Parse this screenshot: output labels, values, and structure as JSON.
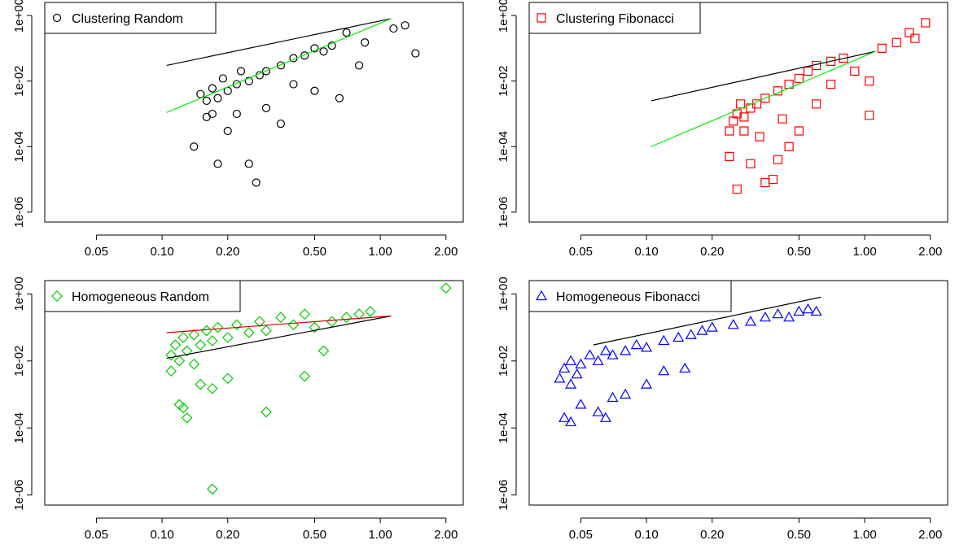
{
  "colors": {
    "black": "#000000",
    "red": "#ff0000",
    "green": "#00cc00",
    "blue": "#0000ff",
    "fit_green": "#00ee00",
    "fit_red": "#cc0000"
  },
  "chart_data": [
    {
      "type": "scatter",
      "x_scale": "log",
      "y_scale": "log",
      "xlim": [
        0.029,
        2.4
      ],
      "ylim": [
        5e-07,
        2.5
      ],
      "x_ticks": [
        "0.05",
        "0.10",
        "0.20",
        "0.50",
        "1.00",
        "2.00"
      ],
      "y_ticks": [
        "1e-06",
        "1e-04",
        "1e-02",
        "1e+00"
      ],
      "legend": {
        "position": "top-left",
        "label": "Clustering Random",
        "marker": "circle",
        "color": "#000000"
      },
      "series": [
        {
          "name": "Clustering Random",
          "marker": "circle",
          "color": "#000000",
          "points": [
            [
              0.15,
              0.004
            ],
            [
              0.16,
              0.0025
            ],
            [
              0.17,
              0.006
            ],
            [
              0.18,
              0.003
            ],
            [
              0.2,
              0.005
            ],
            [
              0.22,
              0.008
            ],
            [
              0.25,
              0.01
            ],
            [
              0.28,
              0.015
            ],
            [
              0.3,
              0.02
            ],
            [
              0.35,
              0.03
            ],
            [
              0.4,
              0.05
            ],
            [
              0.45,
              0.06
            ],
            [
              0.5,
              0.1
            ],
            [
              0.55,
              0.08
            ],
            [
              0.6,
              0.12
            ],
            [
              0.7,
              0.3
            ],
            [
              0.85,
              0.15
            ],
            [
              1.15,
              0.4
            ],
            [
              1.3,
              0.5
            ],
            [
              1.45,
              0.07
            ],
            [
              0.14,
              0.0001
            ],
            [
              0.18,
              3e-05
            ],
            [
              0.25,
              3e-05
            ],
            [
              0.27,
              8e-06
            ],
            [
              0.2,
              0.0003
            ],
            [
              0.16,
              0.0008
            ],
            [
              0.22,
              0.001
            ],
            [
              0.3,
              0.0015
            ],
            [
              0.35,
              0.0005
            ],
            [
              0.4,
              0.008
            ],
            [
              0.5,
              0.005
            ],
            [
              0.65,
              0.003
            ],
            [
              0.8,
              0.03
            ],
            [
              0.19,
              0.012
            ],
            [
              0.23,
              0.02
            ],
            [
              0.17,
              0.001
            ]
          ]
        },
        {
          "name": "",
          "type": "line",
          "color": "#000000",
          "x": [
            0.105,
            1.12
          ],
          "y": [
            0.03,
            0.8
          ]
        },
        {
          "name": "",
          "type": "line",
          "color": "#00ee00",
          "x": [
            0.105,
            1.12
          ],
          "y": [
            0.0011,
            0.8
          ]
        }
      ]
    },
    {
      "type": "scatter",
      "x_scale": "log",
      "y_scale": "log",
      "xlim": [
        0.029,
        2.4
      ],
      "ylim": [
        5e-07,
        2.5
      ],
      "x_ticks": [
        "0.05",
        "0.10",
        "0.20",
        "0.50",
        "1.00",
        "2.00"
      ],
      "y_ticks": [
        "1e-06",
        "1e-04",
        "1e-02",
        "1e+00"
      ],
      "legend": {
        "position": "top-left",
        "label": "Clustering Fibonacci",
        "marker": "square",
        "color": "#ff0000"
      },
      "series": [
        {
          "name": "Clustering Fibonacci",
          "marker": "square",
          "color": "#ff0000",
          "points": [
            [
              0.24,
              0.0003
            ],
            [
              0.25,
              0.0006
            ],
            [
              0.26,
              0.001
            ],
            [
              0.28,
              0.0008
            ],
            [
              0.3,
              0.0015
            ],
            [
              0.32,
              0.002
            ],
            [
              0.35,
              0.003
            ],
            [
              0.4,
              0.005
            ],
            [
              0.45,
              0.008
            ],
            [
              0.5,
              0.012
            ],
            [
              0.55,
              0.02
            ],
            [
              0.6,
              0.03
            ],
            [
              0.7,
              0.04
            ],
            [
              0.8,
              0.05
            ],
            [
              0.9,
              0.02
            ],
            [
              1.05,
              0.01
            ],
            [
              1.2,
              0.1
            ],
            [
              1.4,
              0.15
            ],
            [
              1.6,
              0.3
            ],
            [
              1.9,
              0.6
            ],
            [
              1.7,
              0.2
            ],
            [
              0.24,
              5e-05
            ],
            [
              0.26,
              5e-06
            ],
            [
              0.3,
              3e-05
            ],
            [
              0.35,
              8e-06
            ],
            [
              0.38,
              1e-05
            ],
            [
              0.4,
              4e-05
            ],
            [
              0.45,
              0.0001
            ],
            [
              0.5,
              0.0003
            ],
            [
              0.6,
              0.002
            ],
            [
              1.05,
              0.0009
            ],
            [
              0.7,
              0.008
            ],
            [
              0.28,
              0.0003
            ],
            [
              0.33,
              0.0002
            ],
            [
              0.42,
              0.0007
            ],
            [
              0.27,
              0.002
            ]
          ]
        },
        {
          "name": "",
          "type": "line",
          "color": "#000000",
          "x": [
            0.105,
            1.12
          ],
          "y": [
            0.0025,
            0.08
          ]
        },
        {
          "name": "",
          "type": "line",
          "color": "#00ee00",
          "x": [
            0.105,
            1.12
          ],
          "y": [
            0.0001,
            0.08
          ]
        }
      ]
    },
    {
      "type": "scatter",
      "x_scale": "log",
      "y_scale": "log",
      "xlim": [
        0.029,
        2.4
      ],
      "ylim": [
        5e-07,
        2.5
      ],
      "x_ticks": [
        "0.05",
        "0.10",
        "0.20",
        "0.50",
        "1.00",
        "2.00"
      ],
      "y_ticks": [
        "1e-06",
        "1e-04",
        "1e-02",
        "1e+00"
      ],
      "legend": {
        "position": "top-left",
        "label": "Homogeneous Random",
        "marker": "diamond",
        "color": "#00cc00"
      },
      "series": [
        {
          "name": "Homogeneous Random",
          "marker": "diamond",
          "color": "#00cc00",
          "points": [
            [
              0.11,
              0.015
            ],
            [
              0.115,
              0.03
            ],
            [
              0.12,
              0.01
            ],
            [
              0.125,
              0.05
            ],
            [
              0.13,
              0.02
            ],
            [
              0.14,
              0.06
            ],
            [
              0.15,
              0.03
            ],
            [
              0.16,
              0.08
            ],
            [
              0.17,
              0.04
            ],
            [
              0.18,
              0.1
            ],
            [
              0.2,
              0.05
            ],
            [
              0.22,
              0.12
            ],
            [
              0.25,
              0.07
            ],
            [
              0.28,
              0.15
            ],
            [
              0.3,
              0.08
            ],
            [
              0.35,
              0.2
            ],
            [
              0.4,
              0.12
            ],
            [
              0.45,
              0.25
            ],
            [
              0.5,
              0.1
            ],
            [
              0.55,
              0.02
            ],
            [
              0.6,
              0.15
            ],
            [
              0.7,
              0.2
            ],
            [
              0.8,
              0.25
            ],
            [
              0.9,
              0.3
            ],
            [
              2.0,
              1.5
            ],
            [
              0.12,
              0.0005
            ],
            [
              0.125,
              0.0004
            ],
            [
              0.13,
              0.0002
            ],
            [
              0.15,
              0.002
            ],
            [
              0.17,
              0.0015
            ],
            [
              0.2,
              0.003
            ],
            [
              0.3,
              0.0003
            ],
            [
              0.45,
              0.0035
            ],
            [
              0.17,
              1.5e-06
            ],
            [
              0.11,
              0.005
            ],
            [
              0.14,
              0.008
            ]
          ]
        },
        {
          "name": "",
          "type": "line",
          "color": "#000000",
          "x": [
            0.105,
            1.12
          ],
          "y": [
            0.012,
            0.22
          ]
        },
        {
          "name": "",
          "type": "line",
          "color": "#cc0000",
          "x": [
            0.105,
            1.12
          ],
          "y": [
            0.07,
            0.22
          ]
        }
      ]
    },
    {
      "type": "scatter",
      "x_scale": "log",
      "y_scale": "log",
      "xlim": [
        0.029,
        2.4
      ],
      "ylim": [
        5e-07,
        2.5
      ],
      "x_ticks": [
        "0.05",
        "0.10",
        "0.20",
        "0.50",
        "1.00",
        "2.00"
      ],
      "y_ticks": [
        "1e-06",
        "1e-04",
        "1e-02",
        "1e+00"
      ],
      "legend": {
        "position": "top-left",
        "label": "Homogeneous Fibonacci",
        "marker": "triangle",
        "color": "#0000ff"
      },
      "series": [
        {
          "name": "Homogeneous Fibonacci",
          "marker": "triangle",
          "color": "#0000ff",
          "points": [
            [
              0.04,
              0.003
            ],
            [
              0.042,
              0.006
            ],
            [
              0.045,
              0.01
            ],
            [
              0.048,
              0.004
            ],
            [
              0.05,
              0.008
            ],
            [
              0.055,
              0.015
            ],
            [
              0.06,
              0.01
            ],
            [
              0.065,
              0.02
            ],
            [
              0.07,
              0.015
            ],
            [
              0.08,
              0.02
            ],
            [
              0.09,
              0.03
            ],
            [
              0.1,
              0.025
            ],
            [
              0.12,
              0.04
            ],
            [
              0.14,
              0.05
            ],
            [
              0.16,
              0.06
            ],
            [
              0.18,
              0.08
            ],
            [
              0.2,
              0.1
            ],
            [
              0.25,
              0.12
            ],
            [
              0.3,
              0.15
            ],
            [
              0.35,
              0.2
            ],
            [
              0.4,
              0.25
            ],
            [
              0.45,
              0.2
            ],
            [
              0.5,
              0.3
            ],
            [
              0.55,
              0.35
            ],
            [
              0.6,
              0.3
            ],
            [
              0.042,
              0.0002
            ],
            [
              0.045,
              0.00015
            ],
            [
              0.05,
              0.0005
            ],
            [
              0.06,
              0.0003
            ],
            [
              0.065,
              0.0002
            ],
            [
              0.07,
              0.0008
            ],
            [
              0.08,
              0.001
            ],
            [
              0.1,
              0.002
            ],
            [
              0.12,
              0.005
            ],
            [
              0.15,
              0.006
            ],
            [
              0.045,
              0.002
            ]
          ]
        },
        {
          "name": "",
          "type": "line",
          "color": "#000000",
          "x": [
            0.057,
            0.63
          ],
          "y": [
            0.03,
            0.8
          ]
        }
      ]
    }
  ]
}
